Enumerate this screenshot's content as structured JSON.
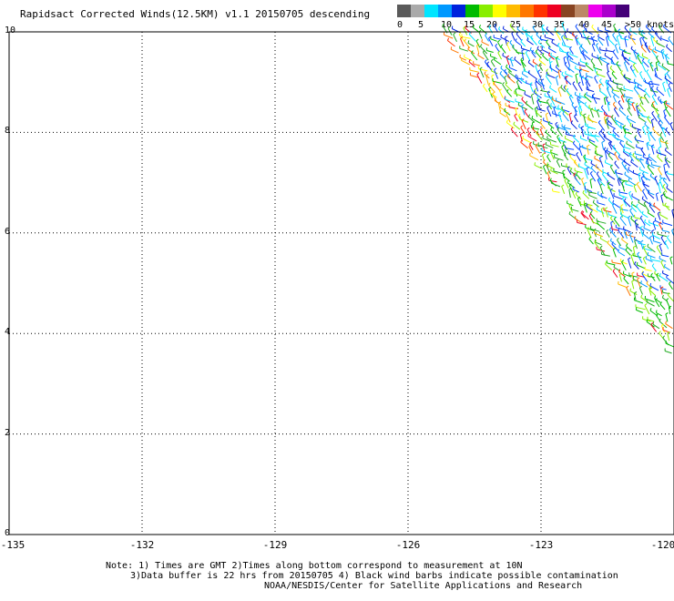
{
  "title": "Rapidsact Corrected Winds(12.5KM) v1.1 20150705 descending",
  "colorbar": {
    "colors": [
      "#5a5a5a",
      "#aaaaaa",
      "#00e5ff",
      "#0099ff",
      "#0022dd",
      "#00bb00",
      "#88ee00",
      "#ffff00",
      "#ffbb00",
      "#ff7700",
      "#ff3300",
      "#ee0022",
      "#884422",
      "#bb8866",
      "#ee00ee",
      "#aa00cc",
      "#440077"
    ],
    "labels": [
      "0",
      "5",
      "10",
      "15",
      "20",
      "25",
      "30",
      "35",
      "40",
      "45",
      ">50 knots"
    ]
  },
  "map": {
    "lon_ticks": [
      "-135",
      "-132",
      "-129",
      "-126",
      "-123",
      "-120"
    ],
    "lat_ticks": [
      "10",
      "8",
      "6",
      "4",
      "2",
      "0"
    ],
    "lon_range": [
      -135,
      -120
    ],
    "lat_range": [
      0,
      10
    ],
    "swath_edge": {
      "top_lon": -125.2,
      "bottom_lat": 3.5
    }
  },
  "notes": [
    "Note: 1) Times are GMT 2)Times along bottom correspond to measurement at 10N",
    "3)Data buffer is 22 hrs from 20150705 4) Black wind barbs indicate possible contamination",
    "NOAA/NESDIS/Center for Satellite Applications and Research"
  ]
}
